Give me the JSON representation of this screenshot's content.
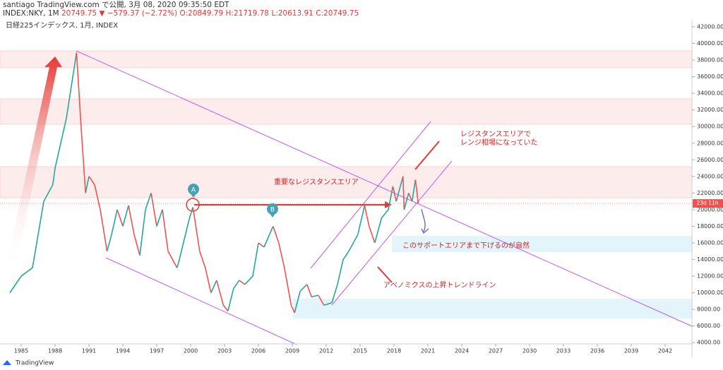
{
  "header": {
    "publisher": "santiago TradingView.com で公開, 3月 08, 2020 09:35:50 EDT",
    "symbol": "INDEX:NKY, 1M",
    "last": "20749.75",
    "change": "▼ −579.37 (−2.72%)",
    "open": "O:20849.79",
    "high": "H:21719.78",
    "low": "L:20613.91",
    "close": "C:20749.75"
  },
  "chart_data": {
    "type": "line",
    "title": "日経225インデックス, 1月, INDEX",
    "x": [
      1984.0,
      1985.0,
      1986.0,
      1986.5,
      1987.0,
      1987.8,
      1988.0,
      1988.5,
      1989.0,
      1989.9,
      1990.3,
      1990.7,
      1991.0,
      1991.5,
      1992.0,
      1992.6,
      1993.0,
      1993.5,
      1994.0,
      1994.5,
      1995.0,
      1995.5,
      1996.0,
      1996.5,
      1997.0,
      1997.5,
      1998.0,
      1998.8,
      1999.0,
      1999.9,
      2000.2,
      2000.8,
      2001.3,
      2001.8,
      2002.3,
      2002.9,
      2003.3,
      2003.8,
      2004.3,
      2004.8,
      2005.5,
      2006.0,
      2006.5,
      2007.3,
      2007.8,
      2008.3,
      2008.9,
      2009.2,
      2009.7,
      2010.3,
      2010.7,
      2011.3,
      2011.8,
      2012.5,
      2013.0,
      2013.5,
      2014.0,
      2014.8,
      2015.4,
      2015.8,
      2016.3,
      2016.9,
      2017.5,
      2017.9,
      2018.2,
      2018.8,
      2018.9,
      2019.3,
      2019.6,
      2019.9,
      2020.15
    ],
    "values": [
      10000,
      12000,
      13000,
      17000,
      21000,
      23000,
      25000,
      28000,
      31000,
      38900,
      30000,
      22000,
      24000,
      23000,
      20000,
      15000,
      17000,
      20000,
      18000,
      20500,
      17000,
      14500,
      20000,
      22000,
      18000,
      20000,
      15000,
      13000,
      14000,
      19000,
      20300,
      15000,
      13000,
      10000,
      11500,
      8500,
      7800,
      10500,
      11500,
      11000,
      12000,
      16000,
      15500,
      18000,
      16000,
      13000,
      8500,
      7600,
      10200,
      11000,
      9500,
      9700,
      8500,
      8800,
      11000,
      14000,
      15000,
      17000,
      20500,
      18000,
      16000,
      19000,
      20000,
      22800,
      21000,
      24000,
      20000,
      22000,
      21000,
      23600,
      20749.75
    ],
    "up_color": "#26a69a",
    "down_color": "#ef5350",
    "xlim": [
      1983.125,
      2044.375
    ],
    "ylim": [
      3850,
      42850
    ],
    "xticks": [
      1985,
      1988,
      1991,
      1994,
      1997,
      2000,
      2003,
      2006,
      2009,
      2012,
      2015,
      2018,
      2021,
      2024,
      2027,
      2030,
      2033,
      2036,
      2039,
      2042
    ],
    "yticks": [
      {
        "value": 4000,
        "label": "4000.00"
      },
      {
        "value": 6000,
        "label": "6000.00"
      },
      {
        "value": 8000,
        "label": "8000.00"
      },
      {
        "value": 10000,
        "label": "10000.00"
      },
      {
        "value": 12000,
        "label": "12000.00"
      },
      {
        "value": 14000,
        "label": "14000.00"
      },
      {
        "value": 16000,
        "label": "16000.00"
      },
      {
        "value": 18000,
        "label": "18000.00"
      },
      {
        "value": 20000,
        "label": "20000.00"
      },
      {
        "value": 22000,
        "label": "22000.00"
      },
      {
        "value": 24000,
        "label": "24000.00"
      },
      {
        "value": 26000,
        "label": "26000.00"
      },
      {
        "value": 28000,
        "label": "28000.00"
      },
      {
        "value": 30000,
        "label": "30000.00"
      },
      {
        "value": 32000,
        "label": "32000.00"
      },
      {
        "value": 34000,
        "label": "34000.00"
      },
      {
        "value": 36000,
        "label": "36000.00"
      },
      {
        "value": 38000,
        "label": "38000.00"
      },
      {
        "value": 40000,
        "label": "40000.00"
      },
      {
        "value": 42000,
        "label": "42000.00"
      }
    ],
    "annotations": [
      "重要なレジスタンスエリア",
      "レジスタンスエリアで",
      "レンジ相場になっていた",
      "このサポートエリアまで下げるのが自然",
      "アベノミクスの上昇トレンドライン"
    ],
    "markers": [
      "A",
      "B"
    ],
    "countdown": "23d 11h"
  },
  "footer": {
    "brand": "TradingView"
  }
}
